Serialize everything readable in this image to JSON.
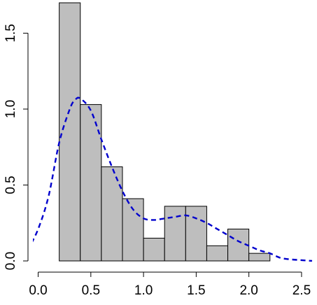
{
  "chart_data": {
    "type": "bar",
    "title": "",
    "xlabel": "",
    "ylabel": "",
    "xlim": [
      -0.05,
      2.6
    ],
    "ylim": [
      0,
      1.7
    ],
    "x_ticks": [
      0,
      0.5,
      1.0,
      1.5,
      2.0,
      2.5
    ],
    "x_tick_labels": [
      "0.0",
      "0.5",
      "1.0",
      "1.5",
      "2.0",
      "2.5"
    ],
    "y_ticks": [
      0,
      0.5,
      1.0,
      1.5
    ],
    "y_tick_labels": [
      "0.0",
      "0.5",
      "1.0",
      "1.5"
    ],
    "grid": false,
    "histogram": {
      "bin_edges": [
        0.2,
        0.4,
        0.6,
        0.8,
        1.0,
        1.2,
        1.4,
        1.6,
        1.8,
        2.0,
        2.2
      ],
      "density": [
        1.7,
        1.03,
        0.62,
        0.41,
        0.15,
        0.36,
        0.36,
        0.1,
        0.21,
        0.05
      ],
      "fill_color": "#bebebe",
      "stroke_color": "#000000"
    },
    "density_curve": {
      "style": "dashed",
      "color": "#0000cd",
      "x": [
        -0.1,
        0.0,
        0.1,
        0.2,
        0.3,
        0.35,
        0.4,
        0.5,
        0.6,
        0.7,
        0.8,
        0.9,
        1.0,
        1.1,
        1.2,
        1.3,
        1.4,
        1.5,
        1.6,
        1.7,
        1.8,
        1.9,
        2.0,
        2.1,
        2.2,
        2.3,
        2.4,
        2.5,
        2.6
      ],
      "y": [
        0.07,
        0.21,
        0.43,
        0.78,
        1.0,
        1.06,
        1.07,
        0.99,
        0.8,
        0.62,
        0.46,
        0.34,
        0.28,
        0.27,
        0.28,
        0.29,
        0.3,
        0.28,
        0.25,
        0.21,
        0.17,
        0.13,
        0.1,
        0.07,
        0.05,
        0.02,
        0.01,
        0.005,
        0.0
      ]
    }
  }
}
